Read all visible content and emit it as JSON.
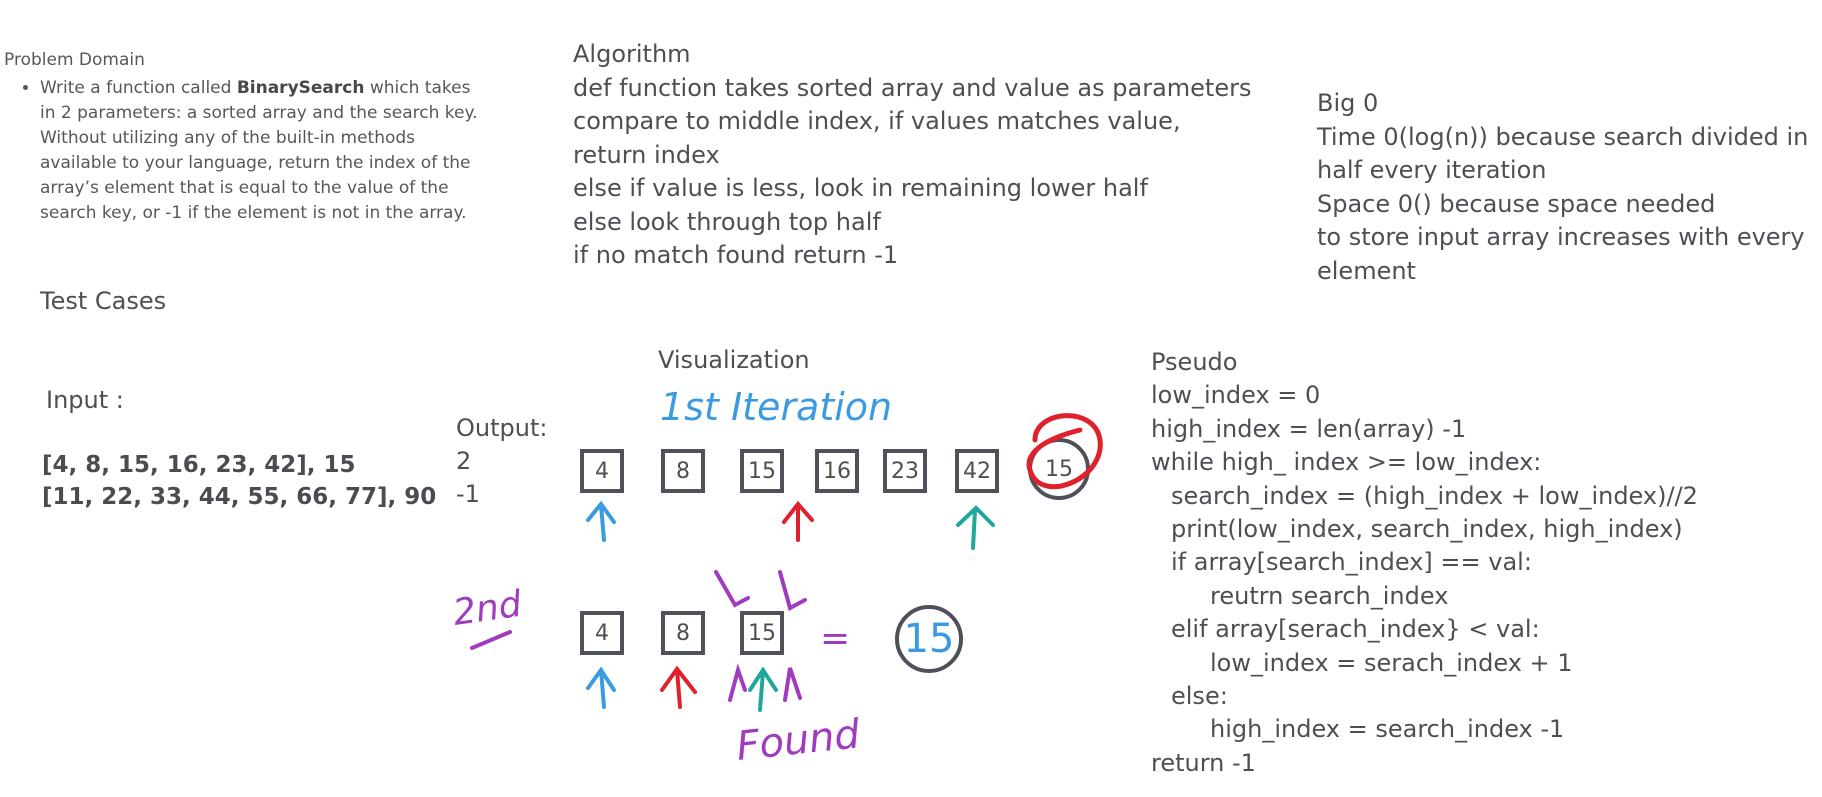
{
  "problem": {
    "heading": "Problem Domain",
    "bullet_lines": {
      "l1_pre": "Write a function called ",
      "l1_bold": "BinarySearch",
      "l1_post": " which takes",
      "l2": "in 2 parameters: a sorted array and the search key.",
      "l3": "Without utilizing any of the built-in methods",
      "l4": "available to your language, return the index of the",
      "l5": "array’s element that is equal to the value of the",
      "l6": "search key, or -1 if the element is not in the array."
    }
  },
  "algorithm": {
    "title": "Algorithm",
    "lines": [
      "def function takes sorted array and value as parameters",
      "compare to middle index, if values matches value,",
      "return index",
      "else if value is less, look in remaining lower half",
      "else look through top half",
      "if no match found return -1"
    ]
  },
  "big_o": {
    "title": "Big 0",
    "lines": [
      "Time 0(log(n)) because  search divided in",
      "half every iteration",
      "Space 0() because space needed",
      "to store input array increases with every",
      "element"
    ]
  },
  "test_cases": {
    "title": "Test Cases",
    "input_label": "Input :",
    "inputs": [
      "[4, 8, 15, 16, 23, 42], 15",
      "[11, 22, 33, 44, 55, 66, 77], 90"
    ],
    "output_label": "Output:",
    "outputs": [
      "2",
      "-1"
    ]
  },
  "visualization": {
    "title": "Visualization",
    "iteration1_label": "1st Iteration",
    "iteration2_label": "2nd",
    "row1_values": [
      "4",
      "8",
      "15",
      "16",
      "23",
      "42"
    ],
    "row1_target": "15",
    "row2_values": [
      "4",
      "8",
      "15"
    ],
    "row2_equals": "=",
    "row2_target": "15",
    "found_label": "Found"
  },
  "pseudo": {
    "title": "Pseudo",
    "lines": [
      {
        "indent": 0,
        "text": "low_index = 0"
      },
      {
        "indent": 0,
        "text": "high_index = len(array) -1"
      },
      {
        "indent": 0,
        "text": "while high_ index  >= low_index:"
      },
      {
        "indent": 1,
        "text": "search_index = (high_index + low_index)//2"
      },
      {
        "indent": 1,
        "text": "print(low_index, search_index, high_index)"
      },
      {
        "indent": 1,
        "text": "if array[search_index] == val:"
      },
      {
        "indent": 2,
        "text": "reutrn search_index"
      },
      {
        "indent": 1,
        "text": "elif array[serach_index} < val:"
      },
      {
        "indent": 2,
        "text": "low_index = serach_index + 1"
      },
      {
        "indent": 1,
        "text": "else:"
      },
      {
        "indent": 2,
        "text": "high_index = search_index -1"
      },
      {
        "indent": 0,
        "text": "return -1"
      }
    ]
  },
  "colors": {
    "text": "#4d4f54",
    "box_border": "#4e505a",
    "ink_blue": "#3a9be0",
    "ink_red": "#e0202a",
    "ink_teal": "#1fa89a",
    "ink_purple": "#a03bc0"
  }
}
